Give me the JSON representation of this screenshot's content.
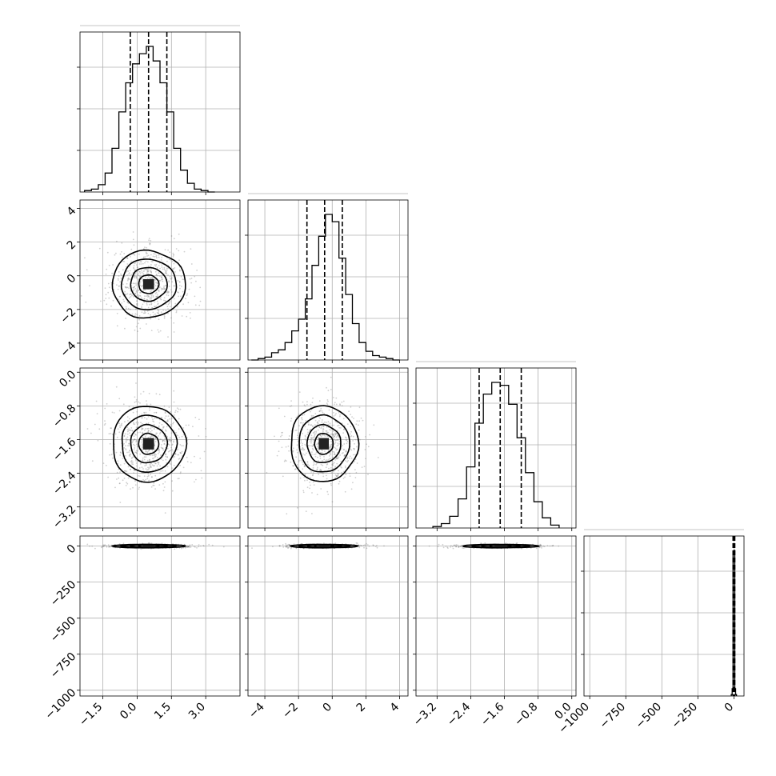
{
  "chart_data": {
    "type": "corner",
    "grid": true,
    "parameters": [
      {
        "range": [
          -2.5,
          4.5
        ],
        "ticks": [
          -1.5,
          0.0,
          1.5,
          3.0
        ],
        "tick_labels": [
          "−1.5",
          "0.0",
          "1.5",
          "3.0"
        ],
        "mean": 0.5,
        "std": 0.8,
        "quantiles": [
          -0.3,
          0.5,
          1.3
        ],
        "hist": {
          "edges": [
            -2.3,
            -2.0,
            -1.7,
            -1.4,
            -1.1,
            -0.8,
            -0.5,
            -0.2,
            0.1,
            0.4,
            0.7,
            1.0,
            1.3,
            1.6,
            1.9,
            2.2,
            2.5,
            2.8,
            3.1,
            3.4
          ],
          "counts": [
            0.01,
            0.02,
            0.05,
            0.13,
            0.3,
            0.55,
            0.75,
            0.88,
            0.95,
            1.0,
            0.9,
            0.75,
            0.55,
            0.3,
            0.15,
            0.06,
            0.02,
            0.01,
            0.0
          ]
        }
      },
      {
        "range": [
          -5.0,
          4.5
        ],
        "ticks": [
          -4,
          -2,
          0,
          2,
          4
        ],
        "tick_labels": [
          "−4",
          "−2",
          "0",
          "2",
          "4"
        ],
        "mean": -0.5,
        "std": 1.0,
        "quantiles": [
          -1.5,
          -0.45,
          0.6
        ],
        "hist": {
          "edges": [
            -4.8,
            -4.4,
            -4.0,
            -3.6,
            -3.2,
            -2.8,
            -2.4,
            -2.0,
            -1.6,
            -1.2,
            -0.8,
            -0.4,
            0.0,
            0.4,
            0.8,
            1.2,
            1.6,
            2.0,
            2.4,
            2.8,
            3.2,
            3.6,
            4.0
          ],
          "counts": [
            0.0,
            0.01,
            0.02,
            0.05,
            0.07,
            0.12,
            0.2,
            0.28,
            0.42,
            0.65,
            0.85,
            1.0,
            0.95,
            0.7,
            0.45,
            0.25,
            0.12,
            0.06,
            0.03,
            0.02,
            0.01,
            0.0
          ]
        }
      },
      {
        "range": [
          -3.7,
          0.1
        ],
        "ticks": [
          -3.2,
          -2.4,
          -1.6,
          -0.8,
          0.0
        ],
        "tick_labels": [
          "−3.2",
          "−2.4",
          "−1.6",
          "−0.8",
          "0.0"
        ],
        "mean": -1.7,
        "std": 0.45,
        "quantiles": [
          -2.2,
          -1.7,
          -1.2
        ],
        "hist": {
          "edges": [
            -3.3,
            -3.1,
            -2.9,
            -2.7,
            -2.5,
            -2.3,
            -2.1,
            -1.9,
            -1.7,
            -1.5,
            -1.3,
            -1.1,
            -0.9,
            -0.7,
            -0.5,
            -0.3
          ],
          "counts": [
            0.01,
            0.03,
            0.08,
            0.2,
            0.42,
            0.72,
            0.92,
            1.0,
            0.98,
            0.85,
            0.62,
            0.38,
            0.18,
            0.07,
            0.02
          ]
        }
      },
      {
        "range": [
          -1040,
          70
        ],
        "ticks": [
          -1000,
          -750,
          -500,
          -250,
          0
        ],
        "tick_labels": [
          "−1000",
          "−750",
          "−500",
          "−250",
          "0"
        ],
        "mean": 0,
        "std": 6,
        "quantiles": [
          -6,
          0,
          6
        ],
        "hist": {
          "edges": [
            -18,
            -12,
            -6,
            0,
            6,
            12,
            18
          ],
          "counts": [
            0.01,
            0.05,
            0.98,
            1.0,
            0.05,
            0.01
          ]
        }
      }
    ]
  }
}
